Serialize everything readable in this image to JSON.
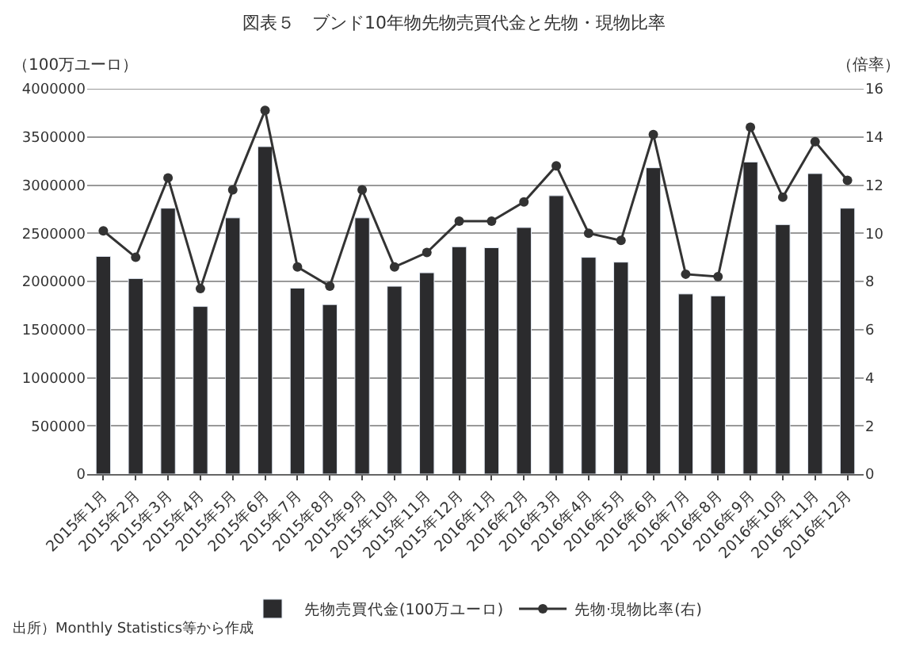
{
  "chart_data": {
    "type": "bar",
    "title": "図表５　ブンド10年物先物売買代金と先物・現物比率",
    "ylabel": "（100万ユーロ）",
    "y2label": "（倍率）",
    "categories": [
      "2015年1月",
      "2015年2月",
      "2015年3月",
      "2015年4月",
      "2015年5月",
      "2015年6月",
      "2015年7月",
      "2015年8月",
      "2015年9月",
      "2015年10月",
      "2015年11月",
      "2015年12月",
      "2016年1月",
      "2016年2月",
      "2016年3月",
      "2016年4月",
      "2016年5月",
      "2016年6月",
      "2016年7月",
      "2016年8月",
      "2016年9月",
      "2016年10月",
      "2016年11月",
      "2016年12月"
    ],
    "series": [
      {
        "name": "先物売買代金(100万ユーロ)",
        "color": "#2b2b2d",
        "values": [
          2260000,
          2030000,
          2760000,
          1740000,
          2660000,
          3400000,
          1930000,
          1760000,
          2660000,
          1950000,
          2090000,
          2360000,
          2350000,
          2560000,
          2890000,
          2250000,
          2200000,
          3180000,
          1870000,
          1850000,
          3240000,
          2590000,
          3120000,
          2760000
        ]
      },
      {
        "name": "先物·現物比率(右)",
        "type": "line",
        "axis": "y2",
        "color": "#333333",
        "marker": "circle",
        "line_style": "solid",
        "values": [
          10.1,
          9.0,
          12.3,
          7.7,
          11.8,
          15.1,
          8.6,
          7.8,
          11.8,
          8.6,
          9.2,
          10.5,
          10.5,
          11.3,
          12.8,
          10.0,
          9.7,
          14.1,
          8.3,
          8.2,
          14.4,
          11.5,
          13.8,
          12.2
        ]
      }
    ],
    "ylim": [
      0,
      4000000
    ],
    "yticks": [
      0,
      500000,
      1000000,
      1500000,
      2000000,
      2500000,
      3000000,
      3500000,
      4000000
    ],
    "y2lim": [
      0,
      16
    ],
    "y2ticks": [
      0,
      2,
      4,
      6,
      8,
      10,
      12,
      14,
      16
    ],
    "grid": "y",
    "legend": "bottom",
    "annotations": [
      "出所）Monthly Statistics等から作成"
    ]
  }
}
